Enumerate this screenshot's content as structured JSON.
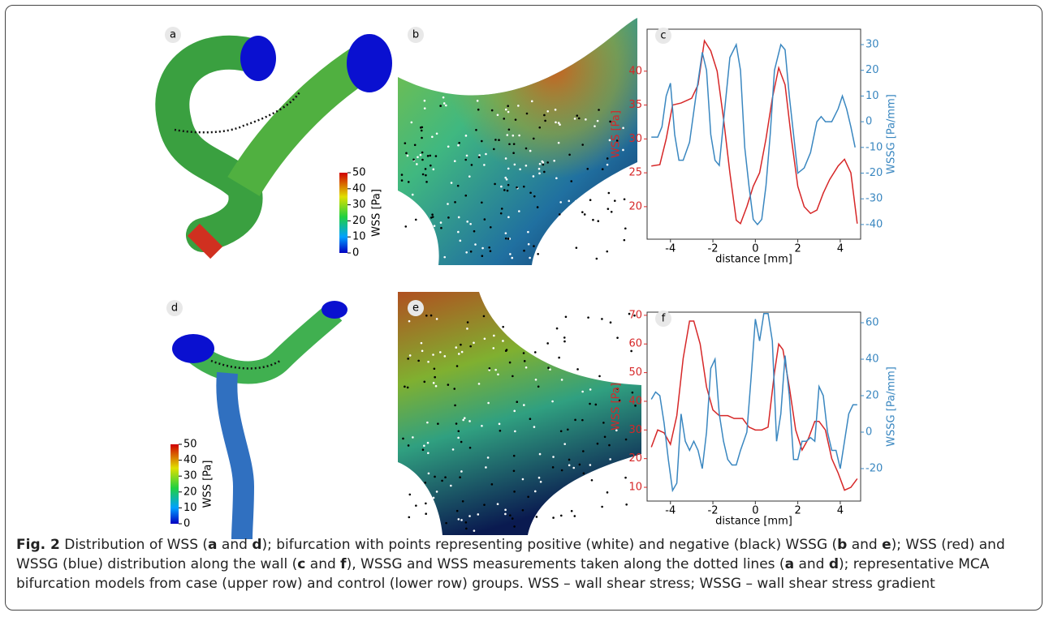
{
  "panel_labels": [
    "a",
    "b",
    "d",
    "e"
  ],
  "colorbars": [
    {
      "label": "WSS [Pa]",
      "ticks": [
        0,
        10,
        20,
        30,
        40,
        50
      ]
    },
    {
      "label": "WSS [Pa]",
      "ticks": [
        0,
        10,
        20,
        30,
        40,
        50
      ]
    }
  ],
  "charts": [
    {
      "type": "line",
      "panel_label": "c",
      "xlabel": "distance [mm]",
      "ylabel": "WSS [Pa]",
      "y2label": "WSSG [Pa/mm]",
      "xlim": [
        -5.1,
        4.96
      ],
      "ylim": [
        15.2,
        46.2
      ],
      "y2lim": [
        -45.7,
        36
      ],
      "xticks": [
        -4,
        -2,
        0,
        2,
        4
      ],
      "yticks": [
        20,
        25,
        30,
        35,
        40
      ],
      "y2ticks": [
        -40,
        -30,
        -20,
        -10,
        0,
        10,
        20,
        30
      ],
      "series": [
        {
          "color": "#d62728",
          "axis": "y",
          "x": [
            -4.9,
            -4.5,
            -4.2,
            -3.9,
            -3.5,
            -3,
            -2.7,
            -2.4,
            -2.1,
            -1.8,
            -1.5,
            -1.2,
            -0.9,
            -0.7,
            -0.4,
            -0.1,
            0.2,
            0.5,
            0.8,
            1.1,
            1.4,
            1.7,
            2,
            2.3,
            2.6,
            2.9,
            3.2,
            3.5,
            3.9,
            4.2,
            4.5,
            4.8
          ],
          "values": [
            26,
            26.2,
            30,
            35,
            35.3,
            36,
            38,
            44.5,
            43,
            40,
            33,
            25,
            18,
            17.5,
            20,
            23,
            25,
            30,
            36,
            40.5,
            38,
            30,
            23,
            20,
            19,
            19.5,
            22,
            24,
            26,
            27,
            25,
            17.5
          ]
        },
        {
          "color": "#3a87c0",
          "axis": "y2",
          "x": [
            -4.9,
            -4.6,
            -4.4,
            -4.2,
            -4,
            -3.8,
            -3.6,
            -3.4,
            -3.1,
            -2.8,
            -2.5,
            -2.3,
            -2.1,
            -1.9,
            -1.7,
            -1.5,
            -1.2,
            -0.9,
            -0.7,
            -0.5,
            -0.3,
            -0.1,
            0.1,
            0.3,
            0.5,
            0.7,
            0.9,
            1.2,
            1.4,
            1.6,
            1.8,
            2,
            2.3,
            2.6,
            2.9,
            3.1,
            3.3,
            3.6,
            3.9,
            4.1,
            4.3,
            4.5,
            4.7
          ],
          "values": [
            -6,
            -6,
            -2,
            10,
            15,
            -5,
            -15,
            -15,
            -8,
            10,
            27,
            20,
            -5,
            -15,
            -17,
            0,
            25,
            30,
            20,
            -10,
            -25,
            -38,
            -40,
            -38,
            -25,
            -5,
            20,
            30,
            28,
            10,
            -5,
            -20,
            -18,
            -12,
            0,
            2,
            0,
            0,
            5,
            10,
            5,
            -2,
            -10
          ]
        }
      ]
    },
    {
      "type": "line",
      "panel_label": "f",
      "xlabel": "distance [mm]",
      "ylabel": "WSS [Pa]",
      "y2label": "WSSG [Pa/mm]",
      "xlim": [
        -5.1,
        4.96
      ],
      "ylim": [
        5.2,
        71.1
      ],
      "y2lim": [
        -37.8,
        65.8
      ],
      "xticks": [
        -4,
        -2,
        0,
        2,
        4
      ],
      "yticks": [
        10,
        20,
        30,
        40,
        50,
        60,
        70
      ],
      "y2ticks": [
        -20,
        0,
        20,
        40,
        60
      ],
      "series": [
        {
          "color": "#d62728",
          "axis": "y",
          "x": [
            -4.9,
            -4.6,
            -4.3,
            -4,
            -3.7,
            -3.4,
            -3.1,
            -2.9,
            -2.6,
            -2.3,
            -2,
            -1.7,
            -1.3,
            -1,
            -0.6,
            -0.3,
            0,
            0.3,
            0.6,
            0.9,
            1.1,
            1.3,
            1.6,
            1.9,
            2.2,
            2.5,
            2.8,
            3,
            3.3,
            3.6,
            3.9,
            4.2,
            4.5,
            4.8
          ],
          "values": [
            24,
            30,
            29,
            25,
            35,
            55,
            68,
            68,
            60,
            45,
            37,
            35,
            35,
            34,
            34,
            31,
            30,
            30,
            31,
            50,
            60,
            58,
            45,
            30,
            23,
            27,
            33,
            33,
            30,
            20,
            15,
            9,
            10,
            13
          ]
        },
        {
          "color": "#3a87c0",
          "axis": "y2",
          "x": [
            -4.9,
            -4.7,
            -4.5,
            -4.3,
            -4.1,
            -3.9,
            -3.7,
            -3.5,
            -3.3,
            -3.1,
            -2.9,
            -2.7,
            -2.5,
            -2.3,
            -2.1,
            -1.9,
            -1.7,
            -1.5,
            -1.3,
            -1.1,
            -0.9,
            -0.7,
            -0.4,
            -0.2,
            0,
            0.2,
            0.4,
            0.6,
            0.8,
            1,
            1.2,
            1.4,
            1.6,
            1.8,
            2,
            2.2,
            2.4,
            2.6,
            2.8,
            3,
            3.2,
            3.4,
            3.6,
            3.8,
            4,
            4.2,
            4.4,
            4.6,
            4.8
          ],
          "values": [
            18,
            22,
            20,
            5,
            -15,
            -32,
            -28,
            10,
            -5,
            -10,
            -5,
            -10,
            -20,
            0,
            35,
            40,
            10,
            -5,
            -15,
            -18,
            -18,
            -10,
            0,
            30,
            62,
            50,
            65,
            65,
            50,
            -5,
            10,
            42,
            20,
            -15,
            -15,
            -5,
            -5,
            -3,
            -5,
            25,
            20,
            0,
            -10,
            -10,
            -20,
            -5,
            10,
            15,
            15
          ]
        }
      ]
    }
  ],
  "caption": [
    {
      "text": "Fig. 2",
      "bold": true
    },
    {
      "text": " Distribution of WSS ("
    },
    {
      "text": "a",
      "bold": true
    },
    {
      "text": " and "
    },
    {
      "text": "d",
      "bold": true
    },
    {
      "text": "); bifurcation with points representing positive (white) and negative (black) WSSG ("
    },
    {
      "text": "b",
      "bold": true
    },
    {
      "text": " and "
    },
    {
      "text": "e",
      "bold": true
    },
    {
      "text": "); WSS (red) and WSSG (blue) distribution along the wall ("
    },
    {
      "text": "c",
      "bold": true
    },
    {
      "text": " and "
    },
    {
      "text": "f",
      "bold": true
    },
    {
      "text": "), WSSG and WSS measurements taken along the dotted lines ("
    },
    {
      "text": "a",
      "bold": true
    },
    {
      "text": " and "
    },
    {
      "text": "d",
      "bold": true
    },
    {
      "text": "); representative MCA bifurcation models from case (upper row) and control (lower row) groups. WSS – wall shear stress; WSSG – wall shear stress gradient"
    }
  ]
}
